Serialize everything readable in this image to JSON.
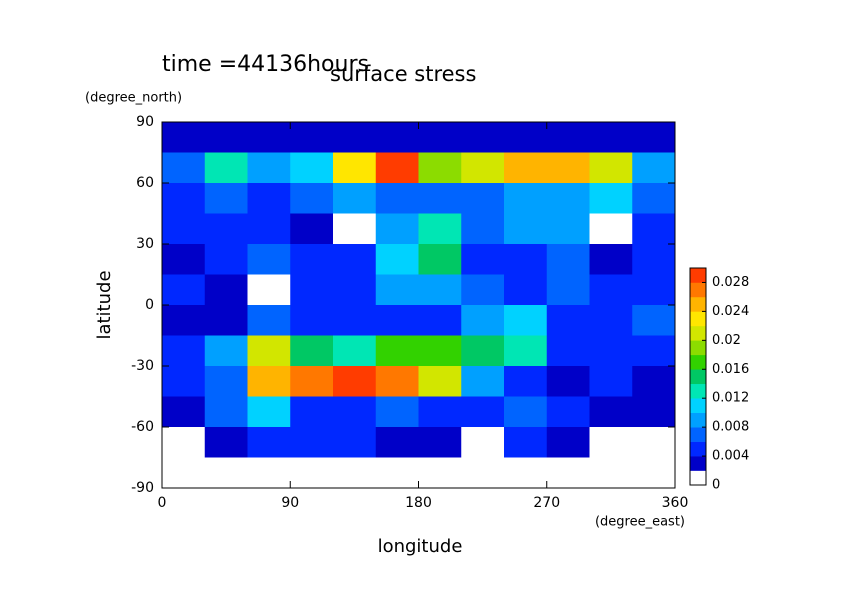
{
  "chart_data": {
    "type": "contour",
    "title": "surface stress",
    "subtitle": "time =44136hours",
    "x_label": "longitude",
    "x_unit": "(degree_east)",
    "y_label": "latitude",
    "y_unit": "(degree_north)",
    "xlim": [
      0,
      360
    ],
    "xticks": [
      0,
      90,
      180,
      270,
      360
    ],
    "ylim": [
      -90,
      90
    ],
    "yticks": [
      -90,
      -60,
      -30,
      0,
      30,
      60,
      90
    ],
    "x": [
      15,
      45,
      75,
      105,
      135,
      165,
      195,
      225,
      255,
      285,
      315,
      345
    ],
    "y": [
      82.5,
      67.5,
      52.5,
      37.5,
      22.5,
      7.5,
      -7.5,
      -22.5,
      -37.5,
      -52.5,
      -67.5,
      -82.5
    ],
    "z": [
      [
        0.003,
        0.003,
        0.003,
        0.003,
        0.003,
        0.003,
        0.003,
        0.003,
        0.003,
        0.003,
        0.003,
        0.003
      ],
      [
        0.006,
        0.012,
        0.008,
        0.01,
        0.022,
        0.028,
        0.018,
        0.02,
        0.024,
        0.024,
        0.02,
        0.008
      ],
      [
        0.005,
        0.006,
        0.005,
        0.006,
        0.008,
        0.007,
        0.006,
        0.006,
        0.008,
        0.008,
        0.01,
        0.006
      ],
      [
        0.004,
        0.005,
        0.004,
        0.003,
        0.001,
        0.008,
        0.012,
        0.006,
        0.008,
        0.008,
        0,
        0.004
      ],
      [
        0.003,
        0.004,
        0.006,
        0.005,
        0.004,
        0.01,
        0.014,
        0.004,
        0.004,
        0.006,
        0.002,
        0.005
      ],
      [
        0.004,
        0.003,
        0.001,
        0.004,
        0.005,
        0.008,
        0.008,
        0.006,
        0.004,
        0.006,
        0.004,
        0.005
      ],
      [
        0.003,
        0.002,
        0.006,
        0.004,
        0.005,
        0.005,
        0.004,
        0.008,
        0.01,
        0.004,
        0.004,
        0.006
      ],
      [
        0.005,
        0.008,
        0.02,
        0.014,
        0.012,
        0.016,
        0.016,
        0.014,
        0.012,
        0.004,
        0.005,
        0.004
      ],
      [
        0.004,
        0.006,
        0.024,
        0.026,
        0.028,
        0.026,
        0.02,
        0.008,
        0.004,
        0.002,
        0.004,
        0.003
      ],
      [
        0.003,
        0.006,
        0.01,
        0.004,
        0.005,
        0.006,
        0.005,
        0.004,
        0.006,
        0.004,
        0.002,
        0.003
      ],
      [
        0,
        0.003,
        0.004,
        0.004,
        0.004,
        0.003,
        0.002,
        0.001,
        0.004,
        0.003,
        0.001,
        0
      ],
      [
        0,
        0,
        0,
        0,
        0,
        0,
        0,
        0,
        0,
        0,
        0,
        0
      ]
    ],
    "clim": [
      0,
      0.03
    ],
    "cticks": [
      0,
      0.004,
      0.008,
      0.012,
      0.016,
      0.02,
      0.024,
      0.028
    ],
    "colors": [
      "#ffffff",
      "#0000c8",
      "#0028ff",
      "#0064ff",
      "#00a0ff",
      "#00d2ff",
      "#00e6b4",
      "#00c864",
      "#32d200",
      "#8cdc00",
      "#d2e600",
      "#ffe600",
      "#ffb400",
      "#ff7800",
      "#ff3c00"
    ]
  }
}
